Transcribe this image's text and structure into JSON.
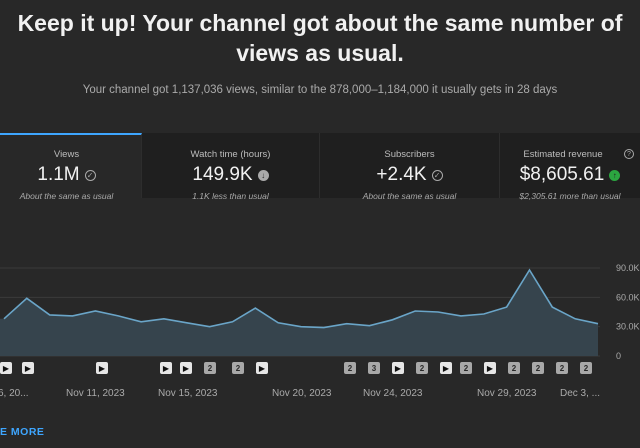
{
  "headline": "Keep it up! Your channel got about the same number of views as usual.",
  "summary": "Your channel got 1,137,036 views, similar to the 878,000–1,184,000 it usually gets in 28 days",
  "metrics": [
    {
      "label": "Views",
      "value": "1.1M",
      "sub": "About the same as usual",
      "icon": "check-circle-icon",
      "active": true
    },
    {
      "label": "Watch time (hours)",
      "value": "149.9K",
      "sub": "1.1K less than usual",
      "icon": "arrow-down-circle-icon",
      "active": false
    },
    {
      "label": "Subscribers",
      "value": "+2.4K",
      "sub": "About the same as usual",
      "icon": "check-circle-icon",
      "active": false
    },
    {
      "label": "Estimated revenue",
      "value": "$8,605.61",
      "sub": "$2,305.61 more than usual",
      "icon": "arrow-up-circle-icon",
      "active": false
    }
  ],
  "chart_data": {
    "type": "area",
    "y_ticks": [
      "90.0K",
      "60.0K",
      "30.0K",
      "0"
    ],
    "ylim": [
      0,
      90000
    ],
    "x_labels": [
      "6, 20...",
      "Nov 11, 2023",
      "Nov 15, 2023",
      "Nov 20, 2023",
      "Nov 24, 2023",
      "Nov 29, 2023",
      "Dec 3, ..."
    ],
    "values": [
      38000,
      59000,
      42000,
      41000,
      46000,
      41000,
      35000,
      38000,
      34000,
      30000,
      35000,
      49000,
      34000,
      30000,
      29000,
      33000,
      31000,
      37000,
      46000,
      45000,
      41000,
      43000,
      50000,
      88000,
      50000,
      38000,
      33000
    ],
    "line_color": "#6aa5c8",
    "fill_color": "#36444d",
    "markers": [
      {
        "kind": "video",
        "label": "▶"
      },
      {
        "kind": "video",
        "label": "▶"
      },
      {
        "kind": "video",
        "label": "▶"
      },
      {
        "kind": "video",
        "label": "▶"
      },
      {
        "kind": "video",
        "label": "▶"
      },
      {
        "kind": "short",
        "label": "2"
      },
      {
        "kind": "short",
        "label": "2"
      },
      {
        "kind": "video",
        "label": "▶"
      },
      {
        "kind": "short",
        "label": "2"
      },
      {
        "kind": "short",
        "label": "3"
      },
      {
        "kind": "video",
        "label": "▶"
      },
      {
        "kind": "short",
        "label": "2"
      },
      {
        "kind": "video",
        "label": "▶"
      },
      {
        "kind": "short",
        "label": "2"
      },
      {
        "kind": "video",
        "label": "▶"
      },
      {
        "kind": "short",
        "label": "2"
      },
      {
        "kind": "short",
        "label": "2"
      },
      {
        "kind": "short",
        "label": "2"
      },
      {
        "kind": "short",
        "label": "2"
      }
    ]
  },
  "see_more": "E MORE",
  "colors": {
    "accent": "#3ea6ff",
    "positive": "#2ba640",
    "background": "#282828"
  }
}
